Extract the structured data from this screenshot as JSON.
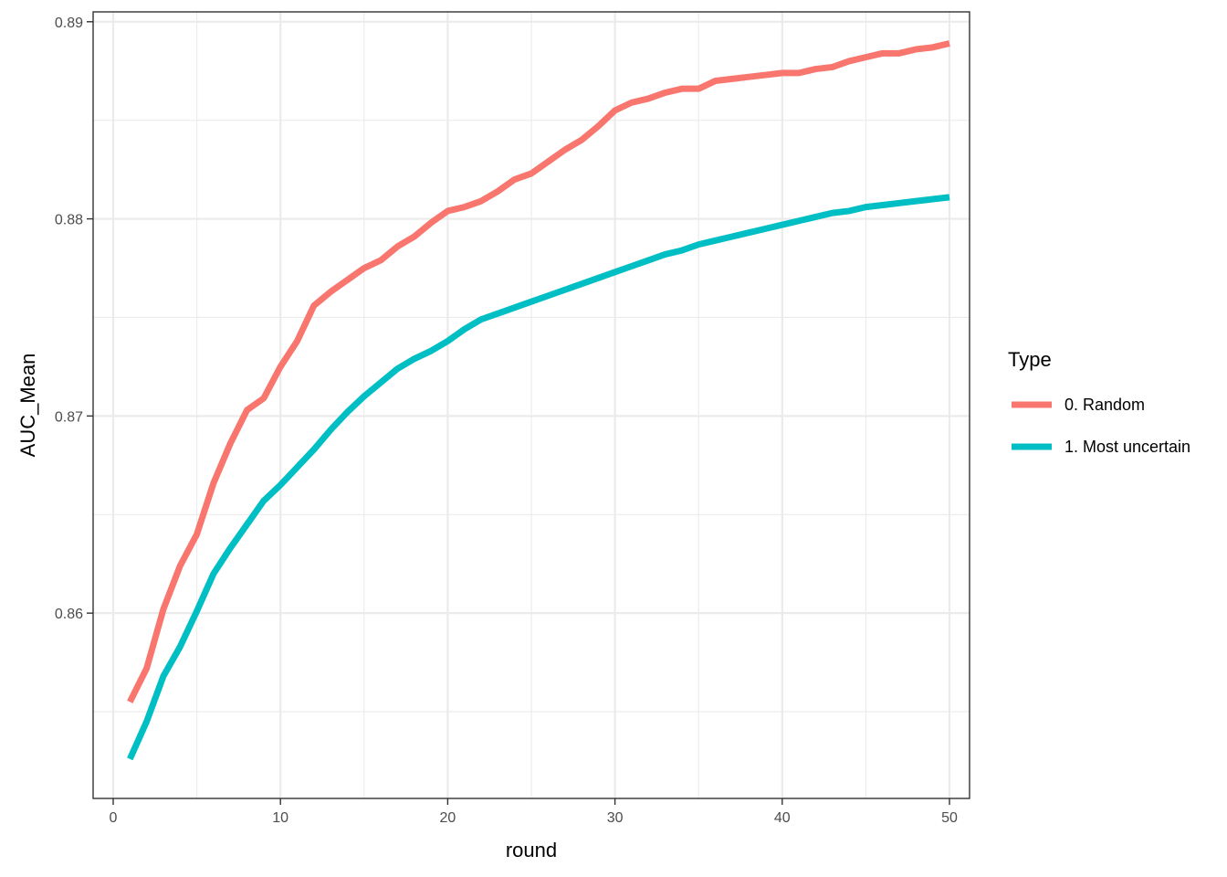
{
  "chart_data": {
    "type": "line",
    "xlabel": "round",
    "ylabel": "AUC_Mean",
    "xlim": [
      -1.2,
      51.2
    ],
    "ylim": [
      0.8506,
      0.8905
    ],
    "x_ticks": [
      0,
      10,
      20,
      30,
      40,
      50
    ],
    "x_tick_labels": [
      "0",
      "10",
      "20",
      "30",
      "40",
      "50"
    ],
    "y_ticks": [
      0.86,
      0.87,
      0.88,
      0.89
    ],
    "y_tick_labels": [
      "0.86",
      "0.87",
      "0.88",
      "0.89"
    ],
    "grid": true,
    "legend": {
      "title": "Type",
      "position": "right"
    },
    "x": [
      1,
      2,
      3,
      4,
      5,
      6,
      7,
      8,
      9,
      10,
      11,
      12,
      13,
      14,
      15,
      16,
      17,
      18,
      19,
      20,
      21,
      22,
      23,
      24,
      25,
      26,
      27,
      28,
      29,
      30,
      31,
      32,
      33,
      34,
      35,
      36,
      37,
      38,
      39,
      40,
      41,
      42,
      43,
      44,
      45,
      46,
      47,
      48,
      49,
      50
    ],
    "series": [
      {
        "name": "0. Random",
        "color": "#F8766D",
        "values": [
          0.8555,
          0.8572,
          0.8602,
          0.8624,
          0.864,
          0.8666,
          0.8686,
          0.8703,
          0.8709,
          0.8725,
          0.8738,
          0.8756,
          0.8763,
          0.8769,
          0.8775,
          0.8779,
          0.8786,
          0.8791,
          0.8798,
          0.8804,
          0.8806,
          0.8809,
          0.8814,
          0.882,
          0.8823,
          0.8829,
          0.8835,
          0.884,
          0.8847,
          0.8855,
          0.8859,
          0.8861,
          0.8864,
          0.8866,
          0.8866,
          0.887,
          0.8871,
          0.8872,
          0.8873,
          0.8874,
          0.8874,
          0.8876,
          0.8877,
          0.888,
          0.8882,
          0.8884,
          0.8884,
          0.8886,
          0.8887,
          0.8889
        ]
      },
      {
        "name": "1. Most uncertain",
        "color": "#00BFC4",
        "values": [
          0.8526,
          0.8545,
          0.8568,
          0.8583,
          0.8601,
          0.862,
          0.8633,
          0.8645,
          0.8657,
          0.8665,
          0.8674,
          0.8683,
          0.8693,
          0.8702,
          0.871,
          0.8717,
          0.8724,
          0.8729,
          0.8733,
          0.8738,
          0.8744,
          0.8749,
          0.8752,
          0.8755,
          0.8758,
          0.8761,
          0.8764,
          0.8767,
          0.877,
          0.8773,
          0.8776,
          0.8779,
          0.8782,
          0.8784,
          0.8787,
          0.8789,
          0.8791,
          0.8793,
          0.8795,
          0.8797,
          0.8799,
          0.8801,
          0.8803,
          0.8804,
          0.8806,
          0.8807,
          0.8808,
          0.8809,
          0.881,
          0.8811
        ]
      }
    ]
  }
}
